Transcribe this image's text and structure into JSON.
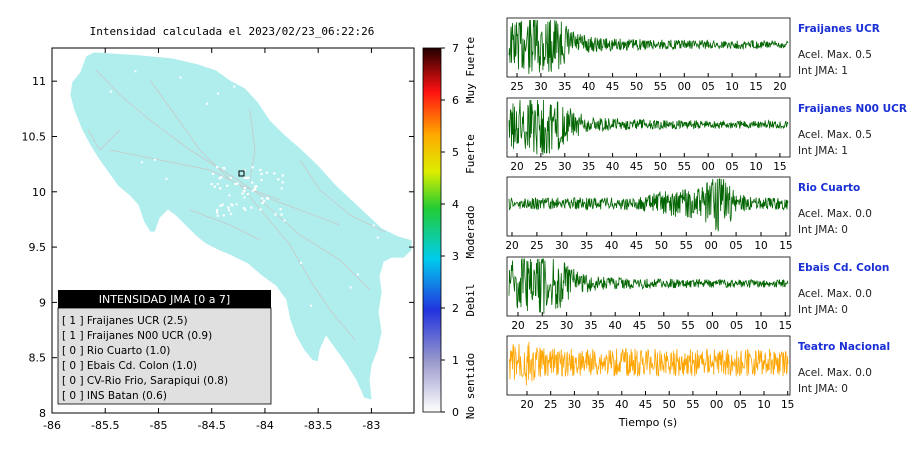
{
  "map": {
    "title": "Intensidad calculada el 2023/02/23_06:22:26",
    "x_ticks": [
      "-86",
      "-85.5",
      "-85",
      "-84.5",
      "-84",
      "-83.5",
      "-83"
    ],
    "y_ticks": [
      "11",
      "10.5",
      "10",
      "9.5",
      "9",
      "8.5",
      "8"
    ],
    "xlim": [
      -86,
      -82.6
    ],
    "ylim": [
      8,
      11.3
    ],
    "land_color": "#b0eeee",
    "legend": {
      "header": "INTENSIDAD JMA [0 a 7]",
      "items": [
        "[ 1 ]  Fraijanes UCR (2.5)",
        "[ 1 ]  Fraijanes N00 UCR (0.9)",
        "[ 0 ]  Rio Cuarto (1.0)",
        "[ 0 ]  Ebais Cd. Colon (1.0)",
        "[ 0 ]  CV-Rio Frio, Sarapiqui (0.8)",
        "[ 0 ]  INS Batan (0.6)"
      ]
    }
  },
  "colorbar": {
    "ticks": [
      "0",
      "1",
      "2",
      "3",
      "4",
      "5",
      "6",
      "7"
    ],
    "labels": [
      "No sentido",
      "Debil",
      "Moderado",
      "Fuerte",
      "Muy Fuerte"
    ]
  },
  "panels": [
    {
      "name": "Fraijanes UCR",
      "accel": "Acel. Max. 0.5",
      "int": "Int JMA: 1",
      "ticks": [
        "25",
        "30",
        "35",
        "40",
        "45",
        "50",
        "55",
        "00",
        "05",
        "10",
        "15",
        "20"
      ],
      "color": "#006400",
      "envelope": "early"
    },
    {
      "name": "Fraijanes N00 UCR",
      "accel": "Acel. Max. 0.5",
      "int": "Int JMA: 1",
      "ticks": [
        "20",
        "25",
        "30",
        "35",
        "40",
        "45",
        "50",
        "55",
        "00",
        "05",
        "10",
        "15"
      ],
      "color": "#006400",
      "envelope": "early"
    },
    {
      "name": "Rio Cuarto",
      "accel": "Acel. Max. 0.0",
      "int": "Int JMA: 0",
      "ticks": [
        "20",
        "25",
        "30",
        "35",
        "40",
        "45",
        "50",
        "55",
        "00",
        "05",
        "10",
        "15"
      ],
      "color": "#006400",
      "envelope": "late"
    },
    {
      "name": "Ebais Cd. Colon",
      "accel": "Acel. Max. 0.0",
      "int": "Int JMA: 0",
      "ticks": [
        "20",
        "25",
        "30",
        "35",
        "40",
        "45",
        "50",
        "55",
        "00",
        "05",
        "10",
        "15"
      ],
      "color": "#006400",
      "envelope": "early"
    },
    {
      "name": "Teatro Nacional",
      "accel": "Acel. Max. 0.0",
      "int": "Int JMA: 0",
      "ticks": [
        "20",
        "25",
        "30",
        "35",
        "40",
        "45",
        "50",
        "55",
        "00",
        "05",
        "10",
        "15"
      ],
      "color": "#ffa500",
      "envelope": "noise"
    }
  ],
  "xlabel": "Tiempo (s)",
  "chart_data": [
    {
      "type": "scatter",
      "title": "Intensidad calculada el 2023/02/23_06:22:26",
      "xlim": [
        -86,
        -82.6
      ],
      "ylim": [
        8,
        11.3
      ],
      "x_ticks": [
        -86,
        -85.5,
        -85,
        -84.5,
        -84,
        -83.5,
        -83
      ],
      "y_ticks": [
        8,
        8.5,
        9,
        9.5,
        10,
        10.5,
        11
      ],
      "grid": false,
      "legend_position": "bottom-left",
      "series": [
        {
          "name": "INTENSIDAD JMA [0 a 7]",
          "points": [
            {
              "label": "Fraijanes UCR",
              "jma": 1,
              "value": 2.5
            },
            {
              "label": "Fraijanes N00 UCR",
              "jma": 1,
              "value": 0.9
            },
            {
              "label": "Rio Cuarto",
              "jma": 0,
              "value": 1.0
            },
            {
              "label": "Ebais Cd. Colon",
              "jma": 0,
              "value": 1.0
            },
            {
              "label": "CV-Rio Frio, Sarapiqui",
              "jma": 0,
              "value": 0.8
            },
            {
              "label": "INS Batan",
              "jma": 0,
              "value": 0.6
            }
          ]
        }
      ],
      "colorbar": {
        "min": 0,
        "max": 7,
        "labels": [
          "No sentido",
          "Debil",
          "Moderado",
          "Fuerte",
          "Muy Fuerte"
        ]
      }
    },
    {
      "type": "line",
      "xlabel": "Tiempo (s)",
      "series": [
        {
          "name": "Fraijanes UCR",
          "acel_max": 0.5,
          "int_jma": 1
        },
        {
          "name": "Fraijanes N00 UCR",
          "acel_max": 0.5,
          "int_jma": 1
        },
        {
          "name": "Rio Cuarto",
          "acel_max": 0.0,
          "int_jma": 0
        },
        {
          "name": "Ebais Cd. Colon",
          "acel_max": 0.0,
          "int_jma": 0
        },
        {
          "name": "Teatro Nacional",
          "acel_max": 0.0,
          "int_jma": 0
        }
      ]
    }
  ]
}
